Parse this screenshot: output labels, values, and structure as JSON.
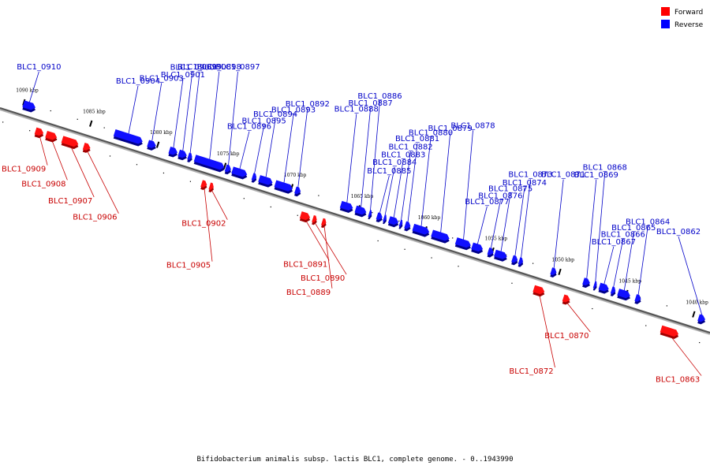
{
  "legend": {
    "forward": {
      "label": "Forward",
      "color": "#ff0000"
    },
    "reverse": {
      "label": "Reverse",
      "color": "#0000ff"
    }
  },
  "caption": "Bifidobacterium animalis subsp. lactis BLC1, complete genome. - 0..1943990",
  "track": {
    "start_kbp": 1091.5,
    "end_kbp": 1038.5,
    "tick_labels": [
      "1090 kbp",
      "1085 kbp",
      "1080 kbp",
      "1075 kbp",
      "1070 kbp",
      "1065 kbp",
      "1060 kbp",
      "1055 kbp",
      "1050 kbp",
      "1045 kbp",
      "1040 kbp"
    ],
    "major_ticks_kbp": [
      1090,
      1085,
      1080,
      1075,
      1070,
      1065,
      1060,
      1055,
      1050,
      1045,
      1040
    ]
  },
  "genes": [
    {
      "name": "BLC1_0910",
      "strand": "reverse",
      "start_kbp": 1090.0,
      "end_kbp": 1089.1
    },
    {
      "name": "BLC1_0909",
      "strand": "forward",
      "start_kbp": 1088.6,
      "end_kbp": 1088.0
    },
    {
      "name": "BLC1_0908",
      "strand": "forward",
      "start_kbp": 1087.8,
      "end_kbp": 1087.0
    },
    {
      "name": "BLC1_0907",
      "strand": "forward",
      "start_kbp": 1086.6,
      "end_kbp": 1085.4
    },
    {
      "name": "BLC1_0906",
      "strand": "forward",
      "start_kbp": 1085.0,
      "end_kbp": 1084.5
    },
    {
      "name": "BLC1_0904",
      "strand": "reverse",
      "start_kbp": 1083.2,
      "end_kbp": 1081.1
    },
    {
      "name": "BLC1_0903",
      "strand": "reverse",
      "start_kbp": 1080.7,
      "end_kbp": 1080.1
    },
    {
      "name": "BLC1_0901",
      "strand": "reverse",
      "start_kbp": 1079.1,
      "end_kbp": 1078.5
    },
    {
      "name": "BLC1_0900",
      "strand": "reverse",
      "start_kbp": 1078.4,
      "end_kbp": 1077.8
    },
    {
      "name": "BLC1_0899",
      "strand": "reverse",
      "start_kbp": 1077.7,
      "end_kbp": 1077.4
    },
    {
      "name": "BLC1_0898",
      "strand": "reverse",
      "start_kbp": 1077.2,
      "end_kbp": 1075.0
    },
    {
      "name": "BLC1_0897",
      "strand": "reverse",
      "start_kbp": 1074.9,
      "end_kbp": 1074.5
    },
    {
      "name": "BLC1_0896",
      "strand": "reverse",
      "start_kbp": 1074.4,
      "end_kbp": 1073.3
    },
    {
      "name": "BLC1_0905",
      "strand": "forward",
      "start_kbp": 1076.2,
      "end_kbp": 1075.8
    },
    {
      "name": "BLC1_0902",
      "strand": "forward",
      "start_kbp": 1075.6,
      "end_kbp": 1075.3
    },
    {
      "name": "BLC1_0895",
      "strand": "reverse",
      "start_kbp": 1072.9,
      "end_kbp": 1072.6
    },
    {
      "name": "BLC1_0894",
      "strand": "reverse",
      "start_kbp": 1072.4,
      "end_kbp": 1071.4
    },
    {
      "name": "BLC1_0893",
      "strand": "reverse",
      "start_kbp": 1071.2,
      "end_kbp": 1069.9
    },
    {
      "name": "BLC1_0892",
      "strand": "reverse",
      "start_kbp": 1069.7,
      "end_kbp": 1069.3
    },
    {
      "name": "BLC1_0891",
      "strand": "forward",
      "start_kbp": 1068.8,
      "end_kbp": 1068.1
    },
    {
      "name": "BLC1_0890",
      "strand": "forward",
      "start_kbp": 1067.9,
      "end_kbp": 1067.6
    },
    {
      "name": "BLC1_0889",
      "strand": "forward",
      "start_kbp": 1067.2,
      "end_kbp": 1066.9
    },
    {
      "name": "BLC1_0888",
      "strand": "reverse",
      "start_kbp": 1066.3,
      "end_kbp": 1065.4
    },
    {
      "name": "BLC1_0887",
      "strand": "reverse",
      "start_kbp": 1065.2,
      "end_kbp": 1064.4
    },
    {
      "name": "BLC1_0886",
      "strand": "reverse",
      "start_kbp": 1064.2,
      "end_kbp": 1064.0
    },
    {
      "name": "BLC1_0885",
      "strand": "reverse",
      "start_kbp": 1063.6,
      "end_kbp": 1063.2
    },
    {
      "name": "BLC1_0884",
      "strand": "reverse",
      "start_kbp": 1063.1,
      "end_kbp": 1062.9
    },
    {
      "name": "BLC1_0883",
      "strand": "reverse",
      "start_kbp": 1062.7,
      "end_kbp": 1062.0
    },
    {
      "name": "BLC1_0882",
      "strand": "reverse",
      "start_kbp": 1061.9,
      "end_kbp": 1061.7
    },
    {
      "name": "BLC1_0881",
      "strand": "reverse",
      "start_kbp": 1061.5,
      "end_kbp": 1061.1
    },
    {
      "name": "BLC1_0880",
      "strand": "reverse",
      "start_kbp": 1060.9,
      "end_kbp": 1059.7
    },
    {
      "name": "BLC1_0879",
      "strand": "reverse",
      "start_kbp": 1059.5,
      "end_kbp": 1058.2
    },
    {
      "name": "BLC1_0878",
      "strand": "reverse",
      "start_kbp": 1057.7,
      "end_kbp": 1056.6
    },
    {
      "name": "BLC1_0877",
      "strand": "reverse",
      "start_kbp": 1056.5,
      "end_kbp": 1055.7
    },
    {
      "name": "BLC1_0876",
      "strand": "reverse",
      "start_kbp": 1055.3,
      "end_kbp": 1054.9
    },
    {
      "name": "BLC1_0875",
      "strand": "reverse",
      "start_kbp": 1054.8,
      "end_kbp": 1053.9
    },
    {
      "name": "BLC1_0874",
      "strand": "reverse",
      "start_kbp": 1053.5,
      "end_kbp": 1053.1
    },
    {
      "name": "BLC1_0873",
      "strand": "reverse",
      "start_kbp": 1053.0,
      "end_kbp": 1052.7
    },
    {
      "name": "BLC1_0872",
      "strand": "forward",
      "start_kbp": 1051.4,
      "end_kbp": 1050.6
    },
    {
      "name": "BLC1_0871",
      "strand": "reverse",
      "start_kbp": 1050.6,
      "end_kbp": 1050.2
    },
    {
      "name": "BLC1_0870",
      "strand": "forward",
      "start_kbp": 1049.2,
      "end_kbp": 1048.7
    },
    {
      "name": "BLC1_0869",
      "strand": "reverse",
      "start_kbp": 1048.2,
      "end_kbp": 1047.7
    },
    {
      "name": "BLC1_0868",
      "strand": "reverse",
      "start_kbp": 1047.4,
      "end_kbp": 1047.2
    },
    {
      "name": "BLC1_0867",
      "strand": "reverse",
      "start_kbp": 1047.0,
      "end_kbp": 1046.3
    },
    {
      "name": "BLC1_0866",
      "strand": "reverse",
      "start_kbp": 1046.1,
      "end_kbp": 1045.8
    },
    {
      "name": "BLC1_0865",
      "strand": "reverse",
      "start_kbp": 1045.6,
      "end_kbp": 1044.7
    },
    {
      "name": "BLC1_0864",
      "strand": "reverse",
      "start_kbp": 1044.3,
      "end_kbp": 1043.9
    },
    {
      "name": "BLC1_0863",
      "strand": "forward",
      "start_kbp": 1041.9,
      "end_kbp": 1040.6
    },
    {
      "name": "BLC1_0862",
      "strand": "reverse",
      "start_kbp": 1039.6,
      "end_kbp": 1039.1
    }
  ]
}
